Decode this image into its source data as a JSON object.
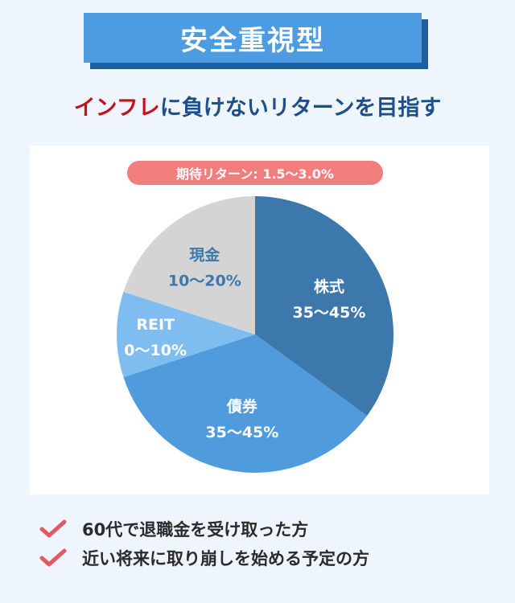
{
  "title": "安全重視型",
  "subtitle": {
    "accent": "インフレ",
    "rest": "に負けないリターンを目指す"
  },
  "expected_return": "期待リターン: 1.5〜3.0%",
  "chart_data": {
    "type": "pie",
    "slices": [
      {
        "label": "株式",
        "range": "35〜45%",
        "value": 35,
        "color": "#3d78ad"
      },
      {
        "label": "債券",
        "range": "35〜45%",
        "value": 35,
        "color": "#4f9bdc"
      },
      {
        "label": "REIT",
        "range": "0〜10%",
        "value": 10,
        "color": "#7fbdf0"
      },
      {
        "label": "現金",
        "range": "10〜20%",
        "value": 20,
        "color": "#d4d4d4"
      }
    ],
    "label_colors": [
      "#ffffff",
      "#ffffff",
      "#ffffff",
      "#3d78ad"
    ]
  },
  "checklist": [
    "60代で退職金を受け取った方",
    "近い将来に取り崩しを始める予定の方"
  ],
  "colors": {
    "check": "#e05a64",
    "title_bg": "#4d9be0",
    "pill_bg": "#f27d7d"
  }
}
